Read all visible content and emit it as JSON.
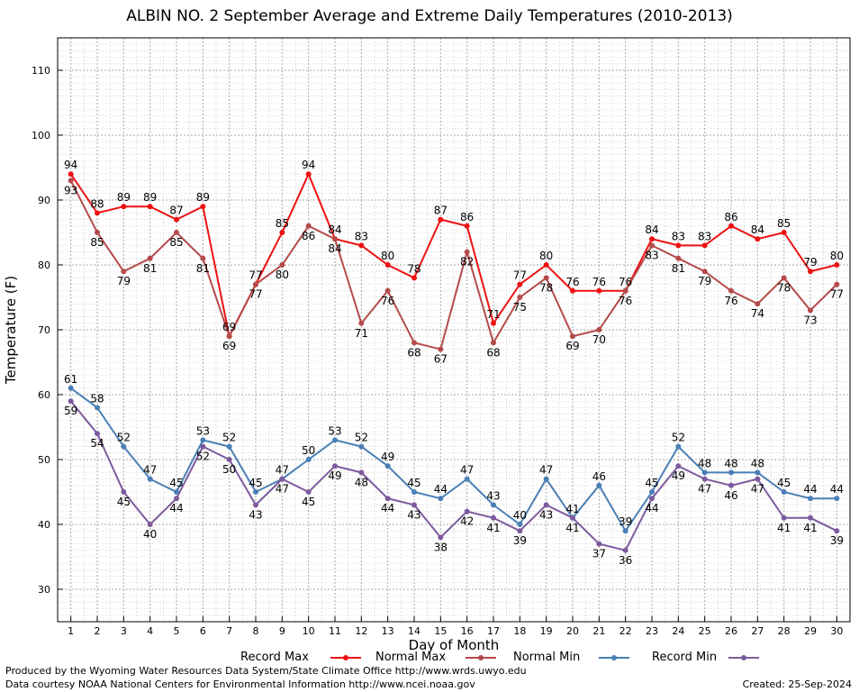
{
  "chart_data": {
    "type": "line",
    "title": "ALBIN NO. 2 September Average and Extreme Daily Temperatures (2010-2013)",
    "xlabel": "Day of Month",
    "ylabel": "Temperature (F)",
    "ylim": [
      25,
      115
    ],
    "xlim": [
      0.5,
      30.5
    ],
    "yticks": [
      30,
      40,
      50,
      60,
      70,
      80,
      90,
      100,
      110
    ],
    "x": [
      1,
      2,
      3,
      4,
      5,
      6,
      7,
      8,
      9,
      10,
      11,
      12,
      13,
      14,
      15,
      16,
      17,
      18,
      19,
      20,
      21,
      22,
      23,
      24,
      25,
      26,
      27,
      28,
      29,
      30
    ],
    "grid": true,
    "legend_position": "bottom",
    "series": [
      {
        "name": "Record Max",
        "color": "#ee1111",
        "values": [
          94,
          88,
          89,
          89,
          87,
          89,
          69,
          77,
          85,
          94,
          84,
          83,
          80,
          78,
          87,
          86,
          71,
          77,
          80,
          76,
          76,
          76,
          84,
          83,
          83,
          86,
          84,
          85,
          79,
          80
        ]
      },
      {
        "name": "Normal Max",
        "color": "#b44a4a",
        "values": [
          93,
          85,
          79,
          81,
          85,
          81,
          69,
          77,
          80,
          86,
          84,
          71,
          76,
          68,
          67,
          82,
          68,
          75,
          78,
          69,
          70,
          76,
          83,
          81,
          79,
          76,
          74,
          78,
          73,
          77
        ]
      },
      {
        "name": "Normal Min",
        "color": "#4a7fb5",
        "values": [
          61,
          58,
          52,
          47,
          45,
          53,
          52,
          45,
          47,
          50,
          53,
          52,
          49,
          45,
          44,
          47,
          43,
          40,
          47,
          41,
          46,
          39,
          45,
          52,
          48,
          48,
          48,
          45,
          44,
          44
        ]
      },
      {
        "name": "Record Min",
        "color": "#7d5a9e",
        "values": [
          59,
          54,
          45,
          40,
          44,
          52,
          50,
          43,
          47,
          45,
          49,
          48,
          44,
          43,
          38,
          42,
          41,
          39,
          43,
          41,
          37,
          36,
          44,
          49,
          47,
          46,
          47,
          41,
          41,
          39
        ]
      }
    ]
  },
  "footer": {
    "produced_by": "Produced by the Wyoming Water Resources Data System/State Climate Office http://www.wrds.uwyo.edu",
    "data_courtesy": "Data courtesy NOAA National Centers for Environmental Information http://www.ncei.noaa.gov",
    "created": "Created: 25-Sep-2024"
  }
}
